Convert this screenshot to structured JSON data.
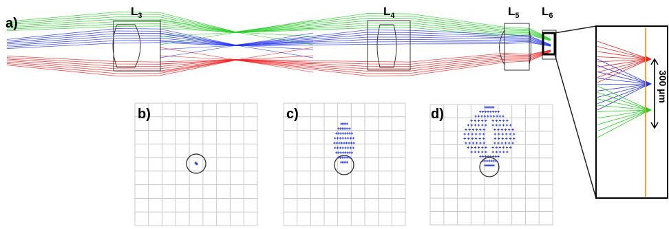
{
  "panels": {
    "a": "a)",
    "b": "b)",
    "c": "c)",
    "d": "d)"
  },
  "lenses": [
    {
      "letter": "L",
      "sub": "3"
    },
    {
      "letter": "L",
      "sub": "4"
    },
    {
      "letter": "L",
      "sub": "5"
    },
    {
      "letter": "L",
      "sub": "6"
    }
  ],
  "inset": {
    "scale_label": "300 µm"
  },
  "colors": {
    "red_beam": "#ee2222",
    "green_beam": "#22cc22",
    "blue_beam": "#2233ee",
    "focal_plane": "#f59a2a",
    "spot_points": "#2a3bd6",
    "grid": "#c8c8c8"
  }
}
